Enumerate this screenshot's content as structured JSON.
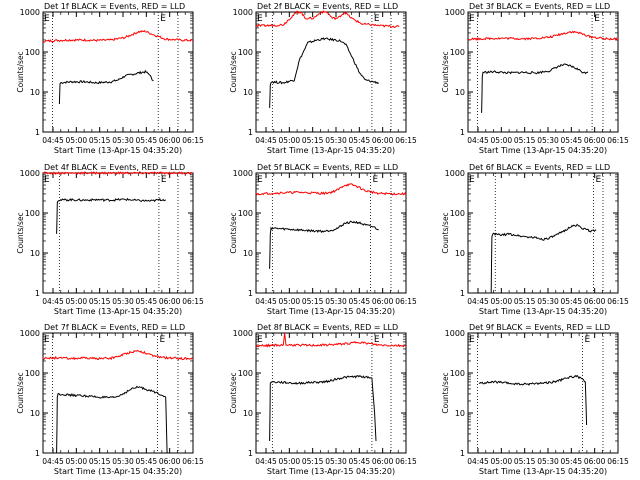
{
  "colors": {
    "events": "#000000",
    "lld": "#ff0000",
    "axes": "#000000",
    "background": "#ffffff"
  },
  "chart_data": [
    {
      "type": "line",
      "detector": "1f",
      "title": "Det 1f BLACK = Events, RED = LLD",
      "xlabel": "Start Time (13-Apr-15 04:35:20)",
      "ylabel": "Counts/sec",
      "xticks": [
        "04:45",
        "05:00",
        "05:15",
        "05:30",
        "05:45",
        "06:00",
        "06:15"
      ],
      "yticks": [
        "1",
        "10",
        "100",
        "1000"
      ],
      "yscale": "log",
      "ylim": [
        1,
        1000
      ],
      "xlim": [
        0,
        110
      ],
      "marker_lines_x": [
        7,
        84.5,
        99
      ],
      "marker_labels": [
        {
          "x": 84.5,
          "text": "E"
        }
      ],
      "series": [
        {
          "id": "events",
          "color": "#000000",
          "x": [
            12,
            12.5,
            13,
            20,
            30,
            40,
            50,
            55,
            60,
            70,
            75,
            78,
            80,
            81
          ],
          "y": [
            5,
            16,
            17,
            18,
            18,
            17,
            18,
            20,
            25,
            30,
            32,
            28,
            20,
            19
          ]
        },
        {
          "id": "lld",
          "color": "#ff0000",
          "x": [
            0,
            10,
            20,
            30,
            40,
            50,
            60,
            65,
            70,
            75,
            80,
            90,
            100,
            110
          ],
          "y": [
            185,
            195,
            200,
            200,
            195,
            200,
            230,
            270,
            320,
            330,
            280,
            210,
            200,
            195
          ]
        }
      ]
    },
    {
      "type": "line",
      "detector": "2f",
      "title": "Det 2f BLACK = Events, RED = LLD",
      "xlabel": "Start Time (13-Apr-15 04:35:20)",
      "ylabel": "Counts/sec",
      "xticks": [
        "04:45",
        "05:00",
        "05:15",
        "05:30",
        "05:45",
        "06:00",
        "06:15"
      ],
      "yticks": [
        "1",
        "10",
        "100",
        "1000"
      ],
      "yscale": "log",
      "ylim": [
        1,
        1000
      ],
      "xlim": [
        0,
        110
      ],
      "marker_lines_x": [
        12,
        85,
        99
      ],
      "marker_labels": [
        {
          "x": 85,
          "text": "E"
        }
      ],
      "series": [
        {
          "id": "events",
          "color": "#000000",
          "x": [
            10,
            10.5,
            11,
            20,
            28,
            32,
            38,
            45,
            50,
            58,
            62,
            66,
            70,
            76,
            80,
            86,
            90
          ],
          "y": [
            4,
            15,
            18,
            17,
            20,
            65,
            170,
            200,
            215,
            200,
            190,
            150,
            80,
            30,
            20,
            18,
            17
          ]
        },
        {
          "id": "lld",
          "color": "#ff0000",
          "x": [
            0,
            10,
            20,
            25,
            30,
            33,
            36,
            42,
            48,
            52,
            56,
            60,
            65,
            70,
            78,
            85,
            92,
            100,
            105
          ],
          "y": [
            450,
            460,
            480,
            700,
            1000,
            1000,
            700,
            700,
            1000,
            1000,
            700,
            700,
            1000,
            700,
            500,
            480,
            450,
            440,
            430
          ]
        }
      ]
    },
    {
      "type": "line",
      "detector": "3f",
      "title": "Det 3f BLACK = Events, RED = LLD",
      "xlabel": "Start Time (13-Apr-15 04:35:20)",
      "ylabel": "Counts/sec",
      "xticks": [
        "04:45",
        "05:00",
        "05:15",
        "05:30",
        "05:45",
        "06:00",
        "06:15"
      ],
      "yticks": [
        "1",
        "10",
        "100",
        "1000"
      ],
      "yscale": "log",
      "ylim": [
        1,
        1000
      ],
      "xlim": [
        0,
        110
      ],
      "marker_lines_x": [
        7,
        91,
        99
      ],
      "marker_labels": [
        {
          "x": 91,
          "text": "E"
        }
      ],
      "series": [
        {
          "id": "events",
          "color": "#000000",
          "x": [
            10,
            10.5,
            11,
            20,
            30,
            40,
            50,
            60,
            65,
            70,
            75,
            80,
            85,
            88
          ],
          "y": [
            3,
            25,
            31,
            32,
            30,
            31,
            30,
            34,
            42,
            48,
            45,
            38,
            30,
            32
          ]
        },
        {
          "id": "lld",
          "color": "#ff0000",
          "x": [
            0,
            10,
            20,
            30,
            40,
            50,
            60,
            70,
            75,
            80,
            90,
            100,
            110
          ],
          "y": [
            210,
            215,
            220,
            220,
            215,
            220,
            235,
            290,
            320,
            310,
            240,
            215,
            210
          ]
        }
      ]
    },
    {
      "type": "line",
      "detector": "4f",
      "title": "Det 4f BLACK = Events, RED = LLD",
      "xlabel": "Start Time (13-Apr-15 04:35:20)",
      "ylabel": "Counts/sec",
      "xticks": [
        "04:45",
        "05:00",
        "05:15",
        "05:30",
        "05:45",
        "06:00",
        "06:15"
      ],
      "yticks": [
        "1",
        "10",
        "100",
        "1000"
      ],
      "yscale": "log",
      "ylim": [
        1,
        1000
      ],
      "xlim": [
        0,
        110
      ],
      "marker_lines_x": [
        12,
        85,
        99
      ],
      "marker_labels": [
        {
          "x": 85,
          "text": "E"
        }
      ],
      "series": [
        {
          "id": "events",
          "color": "#000000",
          "x": [
            10,
            10.5,
            11,
            20,
            30,
            40,
            50,
            60,
            70,
            80,
            85,
            90
          ],
          "y": [
            30,
            180,
            210,
            215,
            210,
            215,
            210,
            220,
            205,
            200,
            215,
            215
          ]
        },
        {
          "id": "lld",
          "color": "#ff0000",
          "x": [
            0,
            10,
            20,
            30,
            40,
            50,
            60,
            70,
            80,
            90,
            100,
            110
          ],
          "y": [
            1000,
            1000,
            1000,
            1000,
            1000,
            1000,
            1000,
            1000,
            1000,
            1000,
            1000,
            1000
          ]
        }
      ]
    },
    {
      "type": "line",
      "detector": "5f",
      "title": "Det 5f BLACK = Events, RED = LLD",
      "xlabel": "Start Time (13-Apr-15 04:35:20)",
      "ylabel": "Counts/sec",
      "xticks": [
        "04:45",
        "05:00",
        "05:15",
        "05:30",
        "05:45",
        "06:00",
        "06:15"
      ],
      "yticks": [
        "1",
        "10",
        "100",
        "1000"
      ],
      "yscale": "log",
      "ylim": [
        1,
        1000
      ],
      "xlim": [
        0,
        110
      ],
      "marker_lines_x": [
        12,
        84,
        99
      ],
      "marker_labels": [
        {
          "x": 84,
          "text": "E"
        }
      ],
      "series": [
        {
          "id": "events",
          "color": "#000000",
          "x": [
            10,
            10.5,
            11,
            20,
            30,
            40,
            50,
            55,
            60,
            65,
            70,
            75,
            80,
            86,
            90
          ],
          "y": [
            4,
            30,
            42,
            40,
            38,
            36,
            35,
            37,
            42,
            55,
            60,
            58,
            50,
            45,
            38
          ]
        },
        {
          "id": "lld",
          "color": "#ff0000",
          "x": [
            0,
            10,
            20,
            30,
            40,
            50,
            55,
            60,
            65,
            70,
            75,
            80,
            90,
            100,
            110
          ],
          "y": [
            300,
            310,
            320,
            330,
            320,
            310,
            330,
            380,
            500,
            510,
            450,
            360,
            310,
            300,
            300
          ]
        }
      ]
    },
    {
      "type": "line",
      "detector": "6f",
      "title": "Det 6f BLACK = Events, RED = LLD",
      "xlabel": "Start Time (13-Apr-15 04:35:20)",
      "ylabel": "Counts/sec",
      "xticks": [
        "04:45",
        "05:00",
        "05:15",
        "05:30",
        "05:45",
        "06:00",
        "06:15"
      ],
      "yticks": [
        "1",
        "10",
        "100",
        "1000"
      ],
      "yscale": "log",
      "ylim": [
        1,
        1000
      ],
      "xlim": [
        0,
        110
      ],
      "marker_lines_x": [
        20,
        92,
        99
      ],
      "marker_labels": [
        {
          "x": 92,
          "text": "E"
        }
      ],
      "series": [
        {
          "id": "events",
          "color": "#000000",
          "x": [
            17,
            17.5,
            18,
            25,
            30,
            40,
            50,
            55,
            60,
            65,
            70,
            75,
            80,
            85,
            90,
            94
          ],
          "y": [
            1,
            25,
            30,
            28,
            30,
            26,
            24,
            22,
            24,
            28,
            35,
            45,
            50,
            40,
            35,
            38
          ]
        }
      ]
    },
    {
      "type": "line",
      "detector": "7f",
      "title": "Det 7f BLACK = Events, RED = LLD",
      "xlabel": "Start Time (13-Apr-15 04:35:20)",
      "ylabel": "Counts/sec",
      "xticks": [
        "04:45",
        "05:00",
        "05:15",
        "05:30",
        "05:45",
        "06:00",
        "06:15"
      ],
      "yticks": [
        "1",
        "10",
        "100",
        "1000"
      ],
      "yscale": "log",
      "ylim": [
        1,
        1000
      ],
      "xlim": [
        0,
        110
      ],
      "marker_lines_x": [
        7,
        84,
        99
      ],
      "marker_labels": [
        {
          "x": 84,
          "text": "E"
        }
      ],
      "series": [
        {
          "id": "events",
          "color": "#000000",
          "x": [
            10,
            10.5,
            11,
            20,
            30,
            40,
            50,
            55,
            60,
            65,
            70,
            75,
            80,
            88,
            90,
            91
          ],
          "y": [
            1,
            25,
            30,
            28,
            27,
            25,
            24,
            26,
            32,
            40,
            45,
            40,
            35,
            28,
            25,
            1
          ]
        },
        {
          "id": "lld",
          "color": "#ff0000",
          "x": [
            0,
            10,
            20,
            30,
            40,
            50,
            55,
            60,
            65,
            70,
            75,
            80,
            90,
            100,
            110
          ],
          "y": [
            230,
            240,
            230,
            235,
            230,
            235,
            260,
            300,
            340,
            360,
            320,
            270,
            240,
            230,
            230
          ]
        }
      ]
    },
    {
      "type": "line",
      "detector": "8f",
      "title": "Det 8f BLACK = Events, RED = LLD",
      "xlabel": "Start Time (13-Apr-15 04:35:20)",
      "ylabel": "Counts/sec",
      "xticks": [
        "04:45",
        "05:00",
        "05:15",
        "05:30",
        "05:45",
        "06:00",
        "06:15"
      ],
      "yticks": [
        "1",
        "10",
        "100",
        "1000"
      ],
      "yscale": "log",
      "ylim": [
        1,
        1000
      ],
      "xlim": [
        0,
        110
      ],
      "marker_lines_x": [
        12,
        85,
        99
      ],
      "marker_labels": [
        {
          "x": 85,
          "text": "E"
        }
      ],
      "series": [
        {
          "id": "events",
          "color": "#000000",
          "x": [
            10,
            10.5,
            11,
            20,
            30,
            40,
            50,
            55,
            60,
            65,
            70,
            75,
            80,
            85,
            87,
            88
          ],
          "y": [
            2,
            55,
            60,
            58,
            55,
            58,
            60,
            65,
            72,
            78,
            80,
            82,
            80,
            75,
            10,
            2
          ]
        },
        {
          "id": "lld",
          "color": "#ff0000",
          "x": [
            0,
            10,
            20,
            21,
            22,
            30,
            40,
            50,
            60,
            70,
            75,
            80,
            90,
            100,
            110
          ],
          "y": [
            480,
            490,
            500,
            1000,
            500,
            500,
            490,
            500,
            520,
            560,
            600,
            560,
            500,
            490,
            480
          ]
        }
      ]
    },
    {
      "type": "line",
      "detector": "9f",
      "title": "Det 9f BLACK = Events, RED = LLD",
      "xlabel": "Start Time (13-Apr-15 04:35:20)",
      "ylabel": "Counts/sec",
      "xticks": [
        "04:45",
        "05:00",
        "05:15",
        "05:30",
        "05:45",
        "06:00",
        "06:15"
      ],
      "yticks": [
        "1",
        "10",
        "100",
        "1000"
      ],
      "yscale": "log",
      "ylim": [
        1,
        1000
      ],
      "xlim": [
        0,
        110
      ],
      "marker_lines_x": [
        7,
        84,
        99
      ],
      "marker_labels": [
        {
          "x": 84,
          "text": "E"
        }
      ],
      "series": [
        {
          "id": "events",
          "color": "#000000",
          "x": [
            8,
            15,
            20,
            30,
            40,
            50,
            60,
            65,
            70,
            75,
            80,
            84,
            86,
            87
          ],
          "y": [
            55,
            58,
            60,
            55,
            52,
            55,
            58,
            62,
            70,
            80,
            82,
            70,
            60,
            5
          ]
        }
      ]
    }
  ]
}
